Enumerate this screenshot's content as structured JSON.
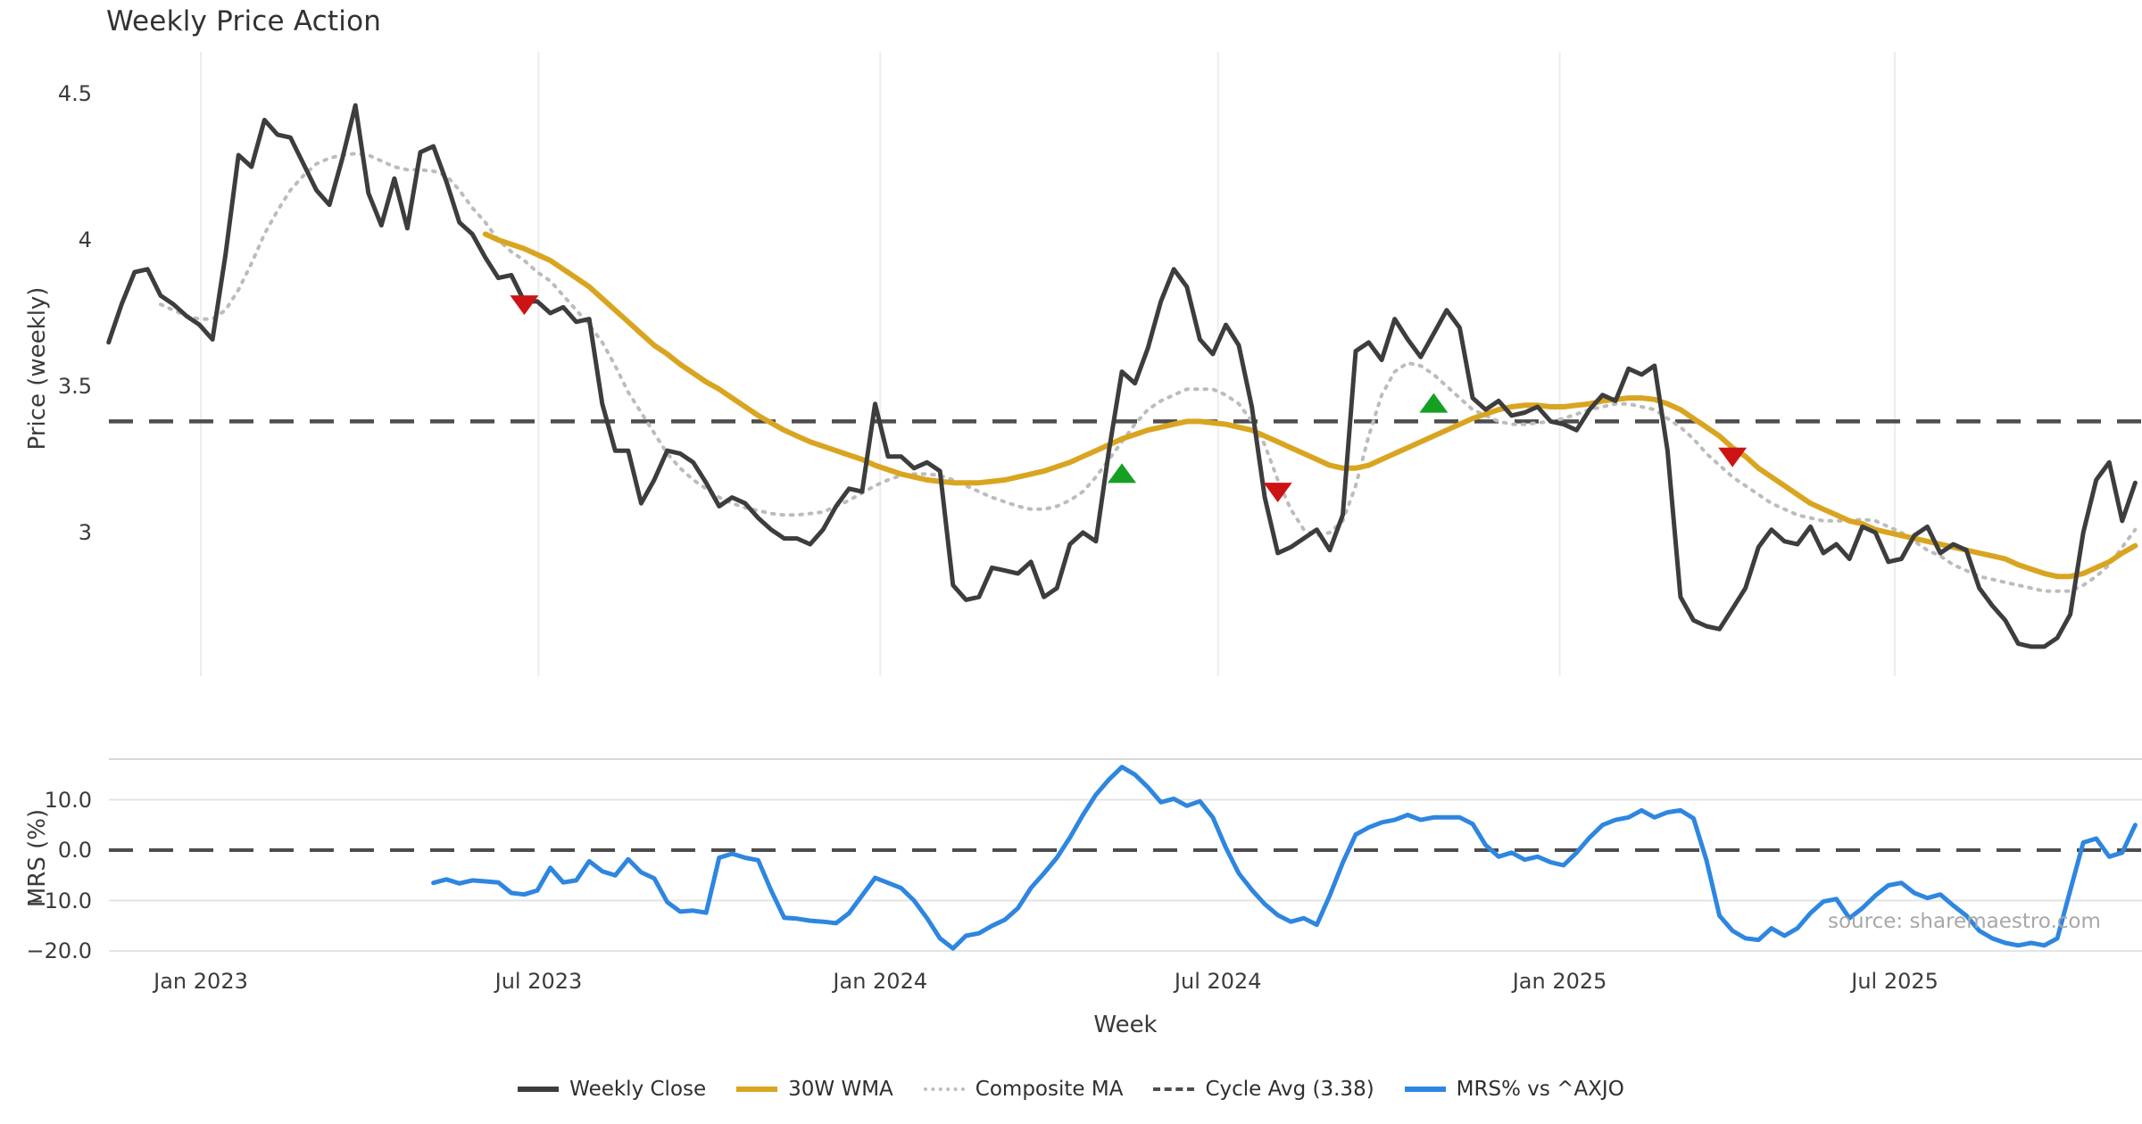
{
  "title": "Weekly Price Action",
  "source_credit": "source: sharemaestro.com",
  "axes": {
    "price_label": "Price (weekly)",
    "mrs_label": "MRS (%)",
    "x_label": "Week",
    "price_tick_labels": [
      "4.5",
      "4",
      "3.5",
      "3"
    ],
    "price_tick_values": [
      4.5,
      4.0,
      3.5,
      3.0
    ],
    "mrs_tick_labels": [
      "10.0",
      "0.0",
      "−10.0",
      "−20.0"
    ],
    "mrs_tick_values": [
      10,
      0,
      -10,
      -20
    ],
    "x_tick_labels": [
      "Jan 2023",
      "Jul 2023",
      "Jan 2024",
      "Jul 2024",
      "Jan 2025",
      "Jul 2025"
    ],
    "x_tick_weeks": [
      7.1,
      33.1,
      59.4,
      85.4,
      111.7,
      137.5
    ]
  },
  "legend": {
    "items": [
      {
        "label": "Weekly Close",
        "swatch": "solid",
        "color": "#3d3d3d"
      },
      {
        "label": "30W WMA",
        "swatch": "solid",
        "color": "#d9a521"
      },
      {
        "label": "Composite MA",
        "swatch": "dotted",
        "color": "#bcbcbc"
      },
      {
        "label": "Cycle Avg (3.38)",
        "swatch": "dashed",
        "color": "#4d4d4d"
      },
      {
        "label": "MRS% vs ^AXJO",
        "swatch": "solid",
        "color": "#2e86e0"
      }
    ]
  },
  "colors": {
    "weekly_close": "#3d3d3d",
    "wma": "#d9a521",
    "composite": "#bcbcbc",
    "cycle_avg": "#4d4d4d",
    "mrs": "#2e86e0",
    "buy_marker": "#16a022",
    "sell_marker": "#cc1414",
    "grid_vertical": "#ededed",
    "grid_horizontal": "#e4e4e4",
    "panel_border": "#d8d8d8",
    "source_text": "#a8a8a8"
  },
  "chart_data": [
    {
      "type": "line",
      "panel": "price",
      "title": "Weekly Price Action",
      "ylabel": "Price (weekly)",
      "xlabel": "Week",
      "x_unit": "weeks",
      "x_start": "2022-11-14",
      "ylim": [
        2.55,
        4.6
      ],
      "yticks": [
        4.5,
        4.0,
        3.5,
        3.0
      ],
      "grid": "vertical-only",
      "cycle_avg_line": {
        "name": "Cycle Avg (3.38)",
        "value": 3.38,
        "style": "dashed"
      },
      "series": [
        {
          "name": "Weekly Close",
          "start_week": 0,
          "values": [
            3.65,
            3.78,
            3.89,
            3.9,
            3.81,
            3.78,
            3.74,
            3.71,
            3.66,
            3.95,
            4.29,
            4.25,
            4.41,
            4.36,
            4.35,
            4.26,
            4.17,
            4.12,
            4.28,
            4.46,
            4.16,
            4.05,
            4.21,
            4.04,
            4.3,
            4.32,
            4.2,
            4.06,
            4.02,
            3.94,
            3.87,
            3.88,
            3.79,
            3.79,
            3.75,
            3.77,
            3.72,
            3.73,
            3.44,
            3.28,
            3.28,
            3.1,
            3.18,
            3.28,
            3.27,
            3.24,
            3.17,
            3.09,
            3.12,
            3.1,
            3.05,
            3.01,
            2.98,
            2.98,
            2.96,
            3.01,
            3.09,
            3.15,
            3.14,
            3.44,
            3.26,
            3.26,
            3.22,
            3.24,
            3.21,
            2.82,
            2.77,
            2.78,
            2.88,
            2.87,
            2.86,
            2.9,
            2.78,
            2.81,
            2.96,
            3.0,
            2.97,
            3.28,
            3.55,
            3.51,
            3.63,
            3.79,
            3.9,
            3.84,
            3.66,
            3.61,
            3.71,
            3.64,
            3.43,
            3.12,
            2.93,
            2.95,
            2.98,
            3.01,
            2.94,
            3.06,
            3.62,
            3.65,
            3.59,
            3.73,
            3.66,
            3.6,
            3.68,
            3.76,
            3.7,
            3.46,
            3.42,
            3.45,
            3.4,
            3.41,
            3.43,
            3.38,
            3.37,
            3.35,
            3.42,
            3.47,
            3.45,
            3.56,
            3.54,
            3.57,
            3.28,
            2.78,
            2.7,
            2.68,
            2.67,
            2.74,
            2.81,
            2.95,
            3.01,
            2.97,
            2.96,
            3.02,
            2.93,
            2.96,
            2.91,
            3.02,
            3.0,
            2.9,
            2.91,
            2.99,
            3.02,
            2.93,
            2.96,
            2.94,
            2.81,
            2.75,
            2.7,
            2.62,
            2.61,
            2.61,
            2.64,
            2.72,
            3.0,
            3.18,
            3.24,
            3.04,
            3.17
          ]
        },
        {
          "name": "30W WMA",
          "start_week": 29,
          "values": [
            4.02,
            4.0,
            3.985,
            3.97,
            3.95,
            3.93,
            3.9,
            3.87,
            3.84,
            3.8,
            3.76,
            3.72,
            3.68,
            3.64,
            3.61,
            3.575,
            3.545,
            3.515,
            3.49,
            3.46,
            3.43,
            3.4,
            3.375,
            3.35,
            3.33,
            3.31,
            3.295,
            3.28,
            3.265,
            3.25,
            3.23,
            3.215,
            3.2,
            3.19,
            3.18,
            3.175,
            3.17,
            3.17,
            3.17,
            3.175,
            3.18,
            3.19,
            3.2,
            3.21,
            3.225,
            3.24,
            3.26,
            3.28,
            3.3,
            3.32,
            3.335,
            3.35,
            3.36,
            3.37,
            3.38,
            3.38,
            3.375,
            3.37,
            3.36,
            3.35,
            3.33,
            3.31,
            3.29,
            3.27,
            3.25,
            3.23,
            3.22,
            3.22,
            3.23,
            3.25,
            3.27,
            3.29,
            3.31,
            3.33,
            3.35,
            3.37,
            3.39,
            3.405,
            3.42,
            3.43,
            3.435,
            3.435,
            3.43,
            3.43,
            3.435,
            3.44,
            3.45,
            3.455,
            3.46,
            3.46,
            3.455,
            3.44,
            3.42,
            3.39,
            3.36,
            3.33,
            3.29,
            3.26,
            3.22,
            3.19,
            3.16,
            3.13,
            3.1,
            3.08,
            3.06,
            3.04,
            3.03,
            3.01,
            3.0,
            2.99,
            2.98,
            2.97,
            2.96,
            2.95,
            2.94,
            2.93,
            2.92,
            2.91,
            2.89,
            2.875,
            2.86,
            2.85,
            2.85,
            2.86,
            2.88,
            2.9,
            2.93,
            2.955
          ]
        },
        {
          "name": "Composite MA",
          "start_week": 4,
          "values": [
            3.78,
            3.76,
            3.74,
            3.73,
            3.73,
            3.76,
            3.83,
            3.92,
            4.02,
            4.1,
            4.17,
            4.22,
            4.26,
            4.28,
            4.29,
            4.295,
            4.29,
            4.27,
            4.25,
            4.24,
            4.24,
            4.235,
            4.22,
            4.17,
            4.11,
            4.06,
            4.0,
            3.96,
            3.93,
            3.89,
            3.86,
            3.81,
            3.76,
            3.71,
            3.65,
            3.57,
            3.48,
            3.41,
            3.34,
            3.27,
            3.22,
            3.18,
            3.15,
            3.12,
            3.1,
            3.085,
            3.075,
            3.065,
            3.06,
            3.06,
            3.065,
            3.07,
            3.09,
            3.11,
            3.135,
            3.16,
            3.18,
            3.195,
            3.2,
            3.2,
            3.195,
            3.18,
            3.16,
            3.14,
            3.12,
            3.105,
            3.09,
            3.08,
            3.08,
            3.09,
            3.11,
            3.14,
            3.19,
            3.25,
            3.31,
            3.37,
            3.42,
            3.45,
            3.47,
            3.49,
            3.49,
            3.49,
            3.47,
            3.44,
            3.38,
            3.3,
            3.18,
            3.08,
            3.01,
            2.99,
            3.0,
            3.04,
            3.16,
            3.33,
            3.47,
            3.55,
            3.58,
            3.57,
            3.54,
            3.5,
            3.46,
            3.42,
            3.4,
            3.38,
            3.37,
            3.37,
            3.375,
            3.38,
            3.39,
            3.405,
            3.42,
            3.43,
            3.44,
            3.44,
            3.43,
            3.42,
            3.39,
            3.36,
            3.32,
            3.27,
            3.23,
            3.19,
            3.16,
            3.13,
            3.1,
            3.08,
            3.06,
            3.05,
            3.04,
            3.04,
            3.04,
            3.045,
            3.04,
            3.02,
            3.0,
            2.97,
            2.94,
            2.92,
            2.89,
            2.87,
            2.85,
            2.84,
            2.83,
            2.82,
            2.81,
            2.8,
            2.8,
            2.8,
            2.82,
            2.85,
            2.89,
            2.95,
            3.01
          ]
        }
      ],
      "signals": {
        "sell": [
          {
            "week": 32,
            "price": 3.78
          },
          {
            "week": 90,
            "price": 3.14
          },
          {
            "week": 125,
            "price": 3.26
          }
        ],
        "buy": [
          {
            "week": 78,
            "price": 3.2
          },
          {
            "week": 102,
            "price": 3.44
          }
        ]
      }
    },
    {
      "type": "line",
      "panel": "mrs",
      "ylabel": "MRS (%)",
      "xlabel": "Week",
      "ylim": [
        -21.5,
        18
      ],
      "yticks": [
        10,
        0,
        -10,
        -20
      ],
      "zero_line": {
        "value": 0,
        "style": "dashed"
      },
      "series": [
        {
          "name": "MRS% vs ^AXJO",
          "start_week": 25,
          "values": [
            -6.5,
            -5.8,
            -6.6,
            -6.0,
            -6.2,
            -6.4,
            -8.5,
            -8.8,
            -8.0,
            -3.5,
            -6.4,
            -6.0,
            -2.2,
            -4.2,
            -5.0,
            -1.8,
            -4.4,
            -5.6,
            -10.3,
            -12.2,
            -12.0,
            -12.4,
            -1.5,
            -0.7,
            -1.5,
            -2.0,
            -8.0,
            -13.4,
            -13.6,
            -14.0,
            -14.2,
            -14.5,
            -12.5,
            -9.0,
            -5.5,
            -6.5,
            -7.5,
            -10.0,
            -13.5,
            -17.5,
            -19.5,
            -17.0,
            -16.5,
            -15.0,
            -13.8,
            -11.5,
            -7.5,
            -4.6,
            -1.5,
            2.5,
            7.0,
            11.0,
            14.0,
            16.5,
            15.0,
            12.5,
            9.5,
            10.2,
            8.8,
            9.7,
            6.5,
            0.5,
            -4.6,
            -7.9,
            -10.7,
            -12.9,
            -14.2,
            -13.5,
            -14.8,
            -9.0,
            -2.5,
            3.1,
            4.5,
            5.5,
            6.0,
            7.0,
            6.0,
            6.5,
            6.5,
            6.5,
            5.2,
            1.0,
            -1.3,
            -0.5,
            -1.9,
            -1.3,
            -2.4,
            -3.0,
            -0.5,
            2.5,
            5.0,
            6.0,
            6.5,
            7.9,
            6.5,
            7.5,
            7.9,
            6.3,
            -2.0,
            -13.0,
            -16.0,
            -17.5,
            -17.8,
            -15.5,
            -17.0,
            -15.5,
            -12.5,
            -10.2,
            -9.7,
            -13.5,
            -11.5,
            -9.0,
            -7.0,
            -6.5,
            -8.5,
            -9.5,
            -8.8,
            -11.0,
            -13.0,
            -16.0,
            -17.5,
            -18.4,
            -18.9,
            -18.4,
            -18.9,
            -17.5,
            -8.0,
            1.5,
            2.3,
            -1.3,
            -0.5,
            5.0
          ]
        }
      ]
    }
  ]
}
